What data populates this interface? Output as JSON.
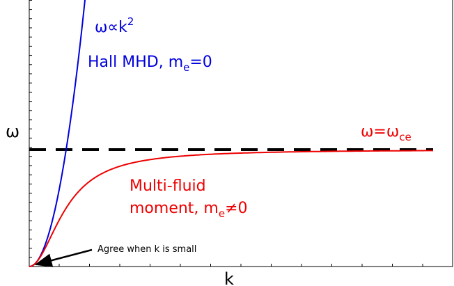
{
  "title_labels": {
    "y_axis": "ω",
    "x_axis": "k",
    "power_law": {
      "main": "ω∝k",
      "sup": "2"
    },
    "hall": {
      "main": "Hall MHD, m",
      "sub": "e",
      "tail": "=0"
    },
    "cyclotron": {
      "main": "ω=ω",
      "sub": "ce"
    },
    "multi_fluid": {
      "line1": "Multi-fluid",
      "main": "moment, m",
      "sub": "e",
      "tail": "≠0"
    },
    "agree": "Agree when k is small"
  }
}
